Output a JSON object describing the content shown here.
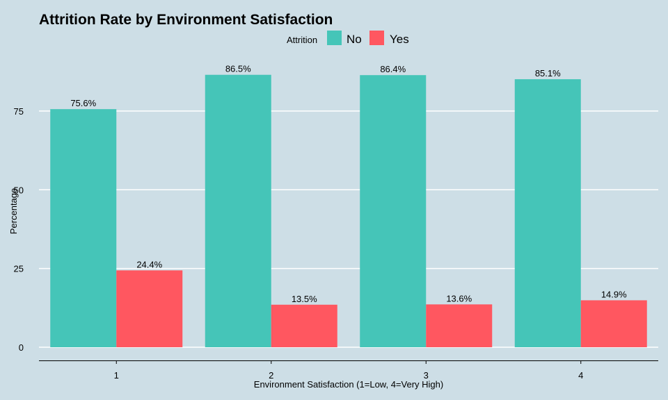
{
  "chart_data": {
    "type": "bar",
    "title": "Attrition Rate by Environment Satisfaction",
    "xlabel": "Environment Satisfaction (1=Low, 4=Very High)",
    "ylabel": "Percentage",
    "categories": [
      "1",
      "2",
      "3",
      "4"
    ],
    "series": [
      {
        "name": "No",
        "color": "#45c5b8",
        "values": [
          75.6,
          86.5,
          86.4,
          85.1
        ],
        "labels": [
          "75.6%",
          "86.5%",
          "86.4%",
          "85.1%"
        ]
      },
      {
        "name": "Yes",
        "color": "#ff5760",
        "values": [
          24.4,
          13.5,
          13.6,
          14.9
        ],
        "labels": [
          "24.4%",
          "13.5%",
          "13.6%",
          "14.9%"
        ]
      }
    ],
    "legend": {
      "title": "Attrition",
      "position": "top"
    },
    "ylim": [
      0,
      90
    ],
    "yticks": [
      0,
      25,
      50,
      75
    ],
    "grid": true,
    "background": "#cddee6"
  }
}
